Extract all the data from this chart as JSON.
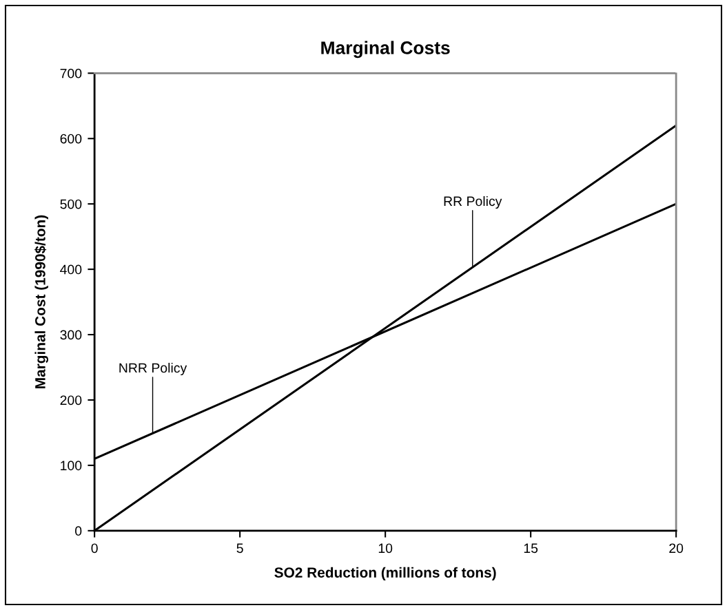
{
  "chart_data": {
    "type": "line",
    "title": "Marginal Costs",
    "xlabel": "SO2 Reduction (millions of tons)",
    "ylabel": "Marginal Cost (1990$/ton)",
    "x": [
      0,
      20
    ],
    "series": [
      {
        "color": "#000000",
        "values": [
          0,
          620
        ]
      },
      {
        "color": "#000000",
        "values": [
          110,
          500
        ]
      }
    ],
    "xlim": [
      0,
      20
    ],
    "ylim": [
      0,
      700
    ],
    "xticks": [
      0,
      5,
      10,
      15,
      20
    ],
    "yticks": [
      0,
      100,
      200,
      300,
      400,
      500,
      600,
      700
    ],
    "annotations": [
      {
        "text": "RR Policy",
        "x": 13,
        "y": 405
      },
      {
        "text": "NRR Policy",
        "x": 2,
        "y": 150
      }
    ]
  }
}
